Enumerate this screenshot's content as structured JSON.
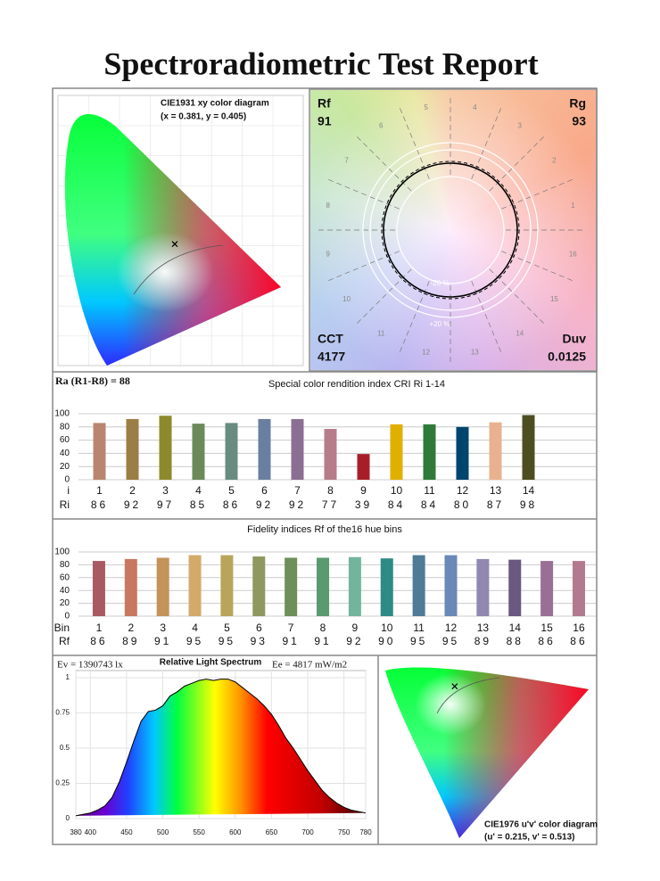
{
  "title": "Spectroradiometric Test Report",
  "tm30": {
    "rf_label": "Rf",
    "rf": 91,
    "rg_label": "Rg",
    "rg": 93,
    "cct_label": "CCT",
    "cct": 4177,
    "duv_label": "Duv",
    "duv": 0.0125,
    "hue_labels": [
      1,
      2,
      3,
      4,
      5,
      6,
      7,
      8,
      9,
      10,
      11,
      12,
      13,
      14,
      15,
      16
    ],
    "minus_label": "-20 %",
    "plus_label": "+20 %"
  },
  "chart_data": [
    {
      "type": "scatter",
      "title": "CIE1931 xy color diagram",
      "subtitle": "(x = 0.381, y = 0.405)",
      "x": [
        0.381
      ],
      "values": [
        0.405
      ],
      "xlim": [
        0,
        0.8
      ],
      "ylim": [
        0,
        0.9
      ]
    },
    {
      "type": "scatter",
      "title": "CIE1976 u'v' color diagram",
      "subtitle": "(u' = 0.215, v' = 0.513)",
      "x": [
        0.215
      ],
      "values": [
        0.513
      ],
      "xlim": [
        0,
        0.63
      ],
      "ylim": [
        0,
        0.6
      ]
    },
    {
      "type": "bar",
      "title": "Special color rendition index CRI Ri 1-14",
      "annotation": "Ra (R1-R8) = 88",
      "row_labels": [
        "i",
        "Ri"
      ],
      "categories": [
        "1",
        "2",
        "3",
        "4",
        "5",
        "6",
        "7",
        "8",
        "9",
        "10",
        "11",
        "12",
        "13",
        "14"
      ],
      "values": [
        86,
        92,
        97,
        85,
        86,
        92,
        92,
        77,
        39,
        84,
        84,
        80,
        87,
        98
      ],
      "colors": [
        "#b88670",
        "#9b7d46",
        "#8d8a2d",
        "#6b8a5a",
        "#6a8c80",
        "#6a7fa0",
        "#8b6f92",
        "#b67c8a",
        "#a81e28",
        "#e0b000",
        "#2f7a3a",
        "#00456e",
        "#e8b28f",
        "#4d4d22"
      ],
      "ylim": [
        0,
        100
      ],
      "yticks": [
        0,
        20,
        40,
        60,
        80,
        100
      ],
      "grid": true
    },
    {
      "type": "bar",
      "title": "Fidelity indices Rf of the16 hue bins",
      "row_labels": [
        "Bin",
        "Rf"
      ],
      "categories": [
        "1",
        "2",
        "3",
        "4",
        "5",
        "6",
        "7",
        "8",
        "9",
        "10",
        "11",
        "12",
        "13",
        "14",
        "15",
        "16"
      ],
      "values": [
        86,
        89,
        91,
        95,
        95,
        93,
        91,
        91,
        92,
        90,
        95,
        95,
        89,
        88,
        86,
        86
      ],
      "colors": [
        "#a85a63",
        "#c87860",
        "#c4935a",
        "#d4aa6a",
        "#b8a55a",
        "#8f9860",
        "#6e8f5a",
        "#5a9a70",
        "#72b59c",
        "#2e8a85",
        "#4f7b96",
        "#6a88b8",
        "#9088b0",
        "#6a5880",
        "#9a6f95",
        "#b37a8f"
      ],
      "ylim": [
        0,
        100
      ],
      "yticks": [
        0,
        20,
        40,
        60,
        80,
        100
      ],
      "grid": true
    },
    {
      "type": "line",
      "title": "Relative Light Spectrum",
      "annotation_left": "Ev = 1390743 lx",
      "annotation_right": "Ee = 4817 mW/m2",
      "x": [
        380,
        390,
        400,
        410,
        420,
        430,
        440,
        450,
        460,
        470,
        480,
        490,
        500,
        510,
        520,
        530,
        540,
        550,
        560,
        570,
        580,
        590,
        600,
        610,
        620,
        630,
        640,
        650,
        660,
        670,
        680,
        690,
        700,
        710,
        720,
        730,
        740,
        750,
        760,
        770,
        780
      ],
      "values": [
        0.02,
        0.03,
        0.04,
        0.06,
        0.09,
        0.15,
        0.26,
        0.4,
        0.55,
        0.69,
        0.76,
        0.77,
        0.8,
        0.87,
        0.9,
        0.94,
        0.96,
        0.98,
        0.99,
        0.98,
        0.99,
        0.99,
        0.97,
        0.93,
        0.89,
        0.85,
        0.8,
        0.74,
        0.66,
        0.57,
        0.5,
        0.42,
        0.34,
        0.27,
        0.2,
        0.15,
        0.11,
        0.08,
        0.06,
        0.05,
        0.04
      ],
      "xlim": [
        380,
        780
      ],
      "xticks": [
        380,
        400,
        450,
        500,
        550,
        600,
        650,
        700,
        750,
        780
      ],
      "ylim": [
        0,
        1
      ],
      "yticks": [
        0,
        0.25,
        0.5,
        0.75,
        1
      ],
      "grid": true
    }
  ]
}
